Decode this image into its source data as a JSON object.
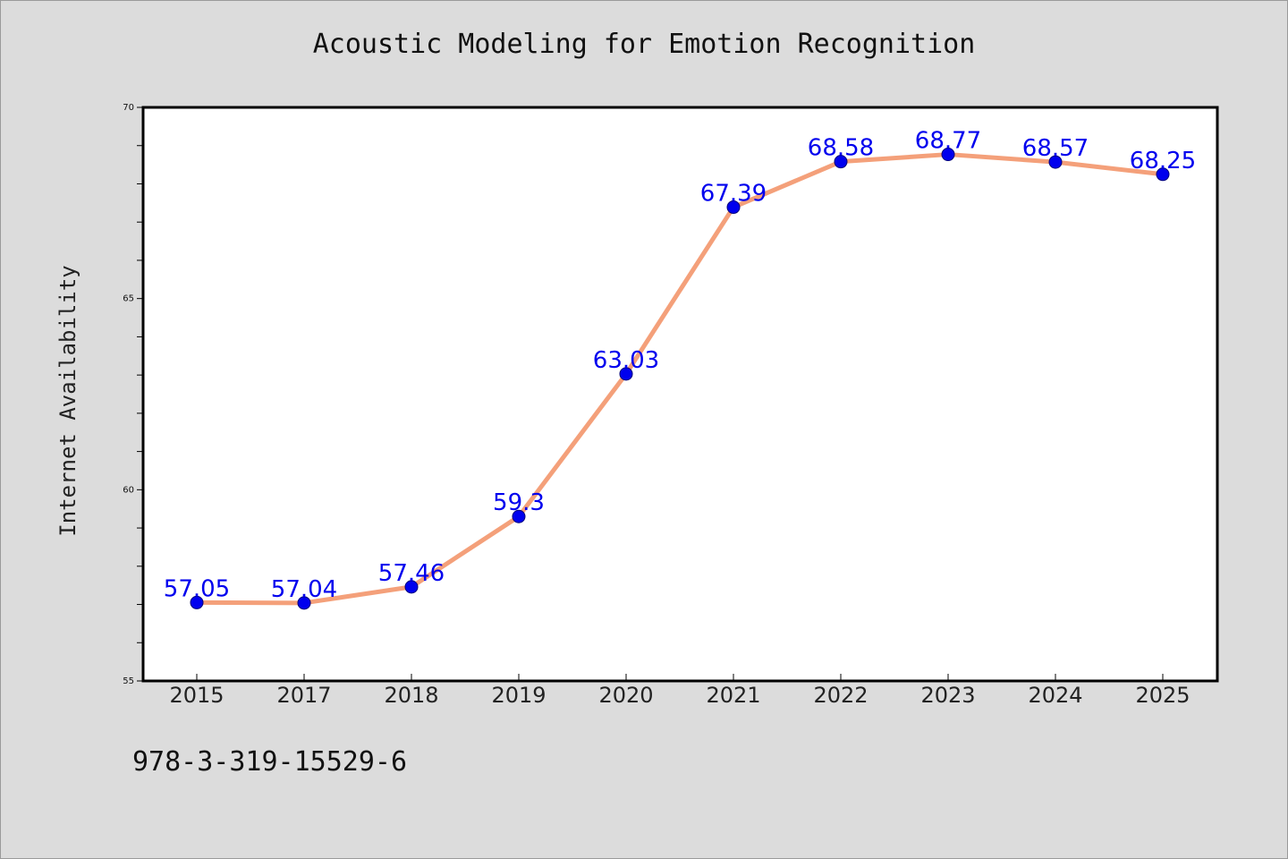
{
  "colors": {
    "background": "#dcdcdc",
    "plot_background": "#ffffff",
    "line": "#f4a07a",
    "marker": "#0000ee",
    "data_label": "#0000ee"
  },
  "footnote": "978-3-319-15529-6",
  "chart_data": {
    "type": "line",
    "title": "Acoustic Modeling for Emotion Recognition",
    "xlabel": "",
    "ylabel": "Internet Availability",
    "categories": [
      "2015",
      "2017",
      "2018",
      "2019",
      "2020",
      "2021",
      "2022",
      "2023",
      "2024",
      "2025"
    ],
    "values": [
      57.05,
      57.04,
      57.46,
      59.3,
      63.03,
      67.39,
      68.58,
      68.77,
      68.57,
      68.25
    ],
    "data_labels": [
      "57.05",
      "57.04",
      "57.46",
      "59.3",
      "63.03",
      "67.39",
      "68.58",
      "68.77",
      "68.57",
      "68.25"
    ],
    "ylim": [
      55,
      70
    ],
    "yticks": [
      55,
      60,
      65,
      70
    ],
    "y_minor_step": 1,
    "grid": false,
    "legend": "none",
    "marker": "circle"
  }
}
